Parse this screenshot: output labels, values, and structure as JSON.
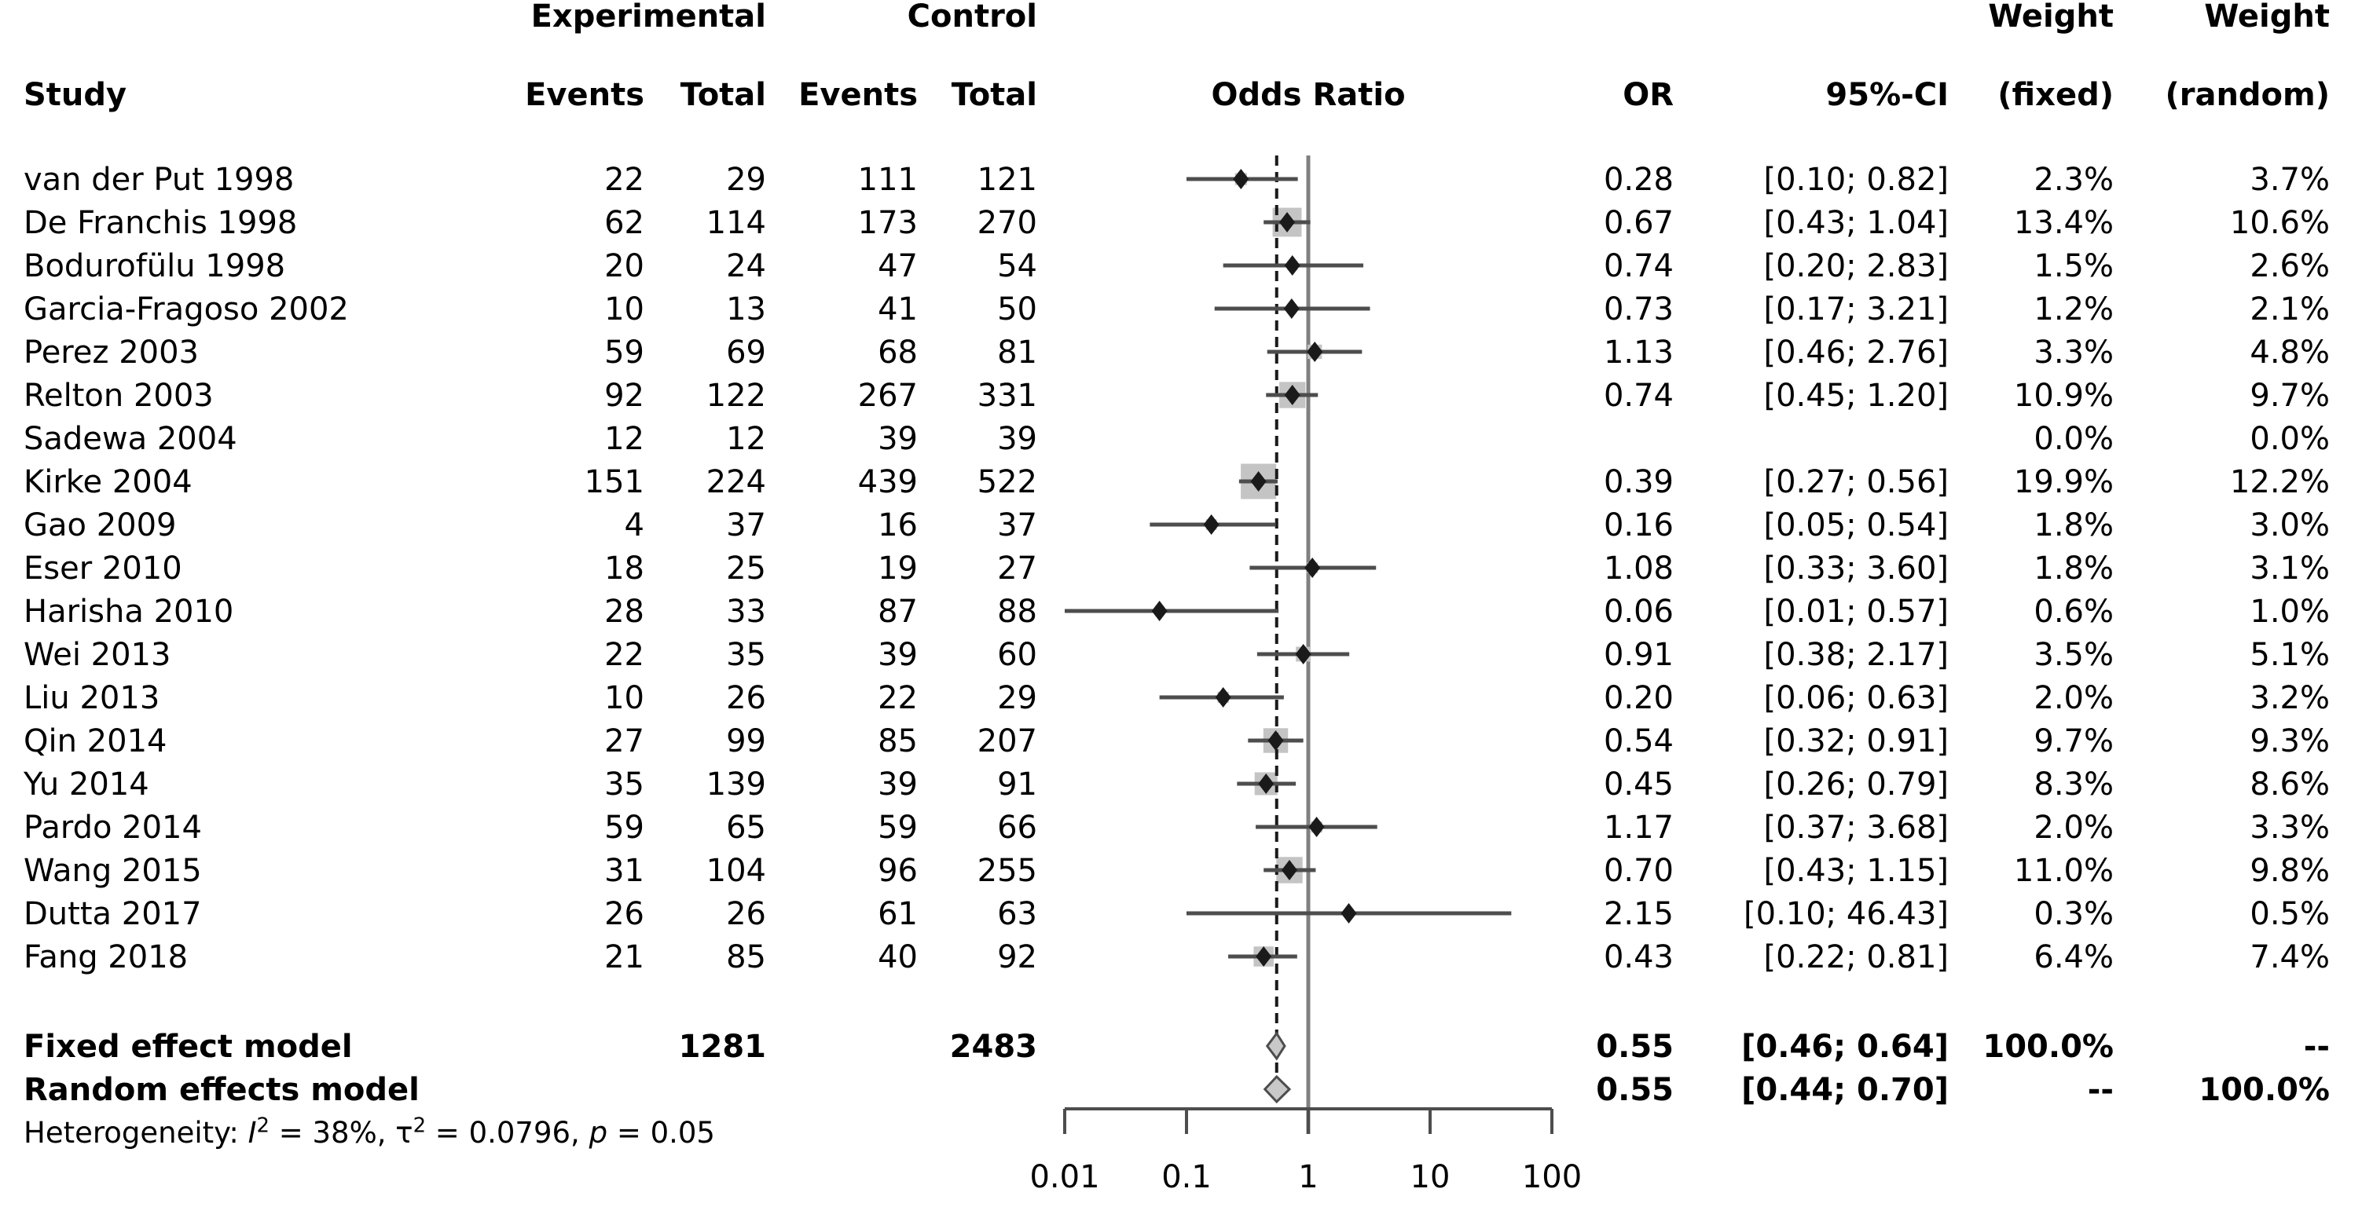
{
  "header": {
    "study": "Study",
    "experimental": "Experimental",
    "control": "Control",
    "events": "Events",
    "total": "Total",
    "odds_ratio": "Odds Ratio",
    "or": "OR",
    "ci": "95%-CI",
    "weight": "Weight",
    "fixed": "(fixed)",
    "random": "(random)"
  },
  "heterogeneity": {
    "prefix": "Heterogeneity: ",
    "i_sym": "I",
    "i_sup": "2",
    "i_rest": " = 38%, ",
    "tau_sym": "τ",
    "tau_sup": "2",
    "tau_rest": " = 0.0796, ",
    "p_sym": "p",
    "p_rest": " = 0.05"
  },
  "colors": {
    "background": "#ffffff",
    "text": "#000000",
    "ci_line": "#4d4d4d",
    "reference_line": "#808080",
    "pooled_dashed_line": "#1a1a1a",
    "square_fill": "#c4c4c4",
    "marker_fill": "#1a1a1a",
    "diamond_fill": "#c8c8c8",
    "diamond_stroke": "#4d4d4d",
    "axis": "#4d4d4d"
  },
  "chart_data": {
    "type": "scatter",
    "subtype": "forest-plot-meta-analysis",
    "effect_measure": "Odds Ratio",
    "x_scale": "log10",
    "x_range": [
      0.01,
      100
    ],
    "x_ticks": [
      0.01,
      0.1,
      1,
      10,
      100
    ],
    "x_tick_labels": [
      "0.01",
      "0.1",
      "1",
      "10",
      "100"
    ],
    "reference_line": 1,
    "pooled_effect_line": 0.55,
    "grid": false,
    "studies": [
      {
        "name": "van der Put 1998",
        "exp_events": "22",
        "exp_total": "29",
        "ctrl_events": "111",
        "ctrl_total": "121",
        "or": 0.28,
        "ci_low": 0.1,
        "ci_high": 0.82,
        "or_label": "0.28",
        "ci_label": "[0.10; 0.82]",
        "weight_fixed": "2.3%",
        "weight_random": "3.7%",
        "weight_fixed_num": 2.3
      },
      {
        "name": "De Franchis 1998",
        "exp_events": "62",
        "exp_total": "114",
        "ctrl_events": "173",
        "ctrl_total": "270",
        "or": 0.67,
        "ci_low": 0.43,
        "ci_high": 1.04,
        "or_label": "0.67",
        "ci_label": "[0.43; 1.04]",
        "weight_fixed": "13.4%",
        "weight_random": "10.6%",
        "weight_fixed_num": 13.4
      },
      {
        "name": "Bodurofülu 1998",
        "exp_events": "20",
        "exp_total": "24",
        "ctrl_events": "47",
        "ctrl_total": "54",
        "or": 0.74,
        "ci_low": 0.2,
        "ci_high": 2.83,
        "or_label": "0.74",
        "ci_label": "[0.20; 2.83]",
        "weight_fixed": "1.5%",
        "weight_random": "2.6%",
        "weight_fixed_num": 1.5
      },
      {
        "name": "Garcia-Fragoso 2002",
        "exp_events": "10",
        "exp_total": "13",
        "ctrl_events": "41",
        "ctrl_total": "50",
        "or": 0.73,
        "ci_low": 0.17,
        "ci_high": 3.21,
        "or_label": "0.73",
        "ci_label": "[0.17; 3.21]",
        "weight_fixed": "1.2%",
        "weight_random": "2.1%",
        "weight_fixed_num": 1.2
      },
      {
        "name": "Perez 2003",
        "exp_events": "59",
        "exp_total": "69",
        "ctrl_events": "68",
        "ctrl_total": "81",
        "or": 1.13,
        "ci_low": 0.46,
        "ci_high": 2.76,
        "or_label": "1.13",
        "ci_label": "[0.46; 2.76]",
        "weight_fixed": "3.3%",
        "weight_random": "4.8%",
        "weight_fixed_num": 3.3
      },
      {
        "name": "Relton 2003",
        "exp_events": "92",
        "exp_total": "122",
        "ctrl_events": "267",
        "ctrl_total": "331",
        "or": 0.74,
        "ci_low": 0.45,
        "ci_high": 1.2,
        "or_label": "0.74",
        "ci_label": "[0.45; 1.20]",
        "weight_fixed": "10.9%",
        "weight_random": "9.7%",
        "weight_fixed_num": 10.9
      },
      {
        "name": "Sadewa 2004",
        "exp_events": "12",
        "exp_total": "12",
        "ctrl_events": "39",
        "ctrl_total": "39",
        "or": null,
        "ci_low": null,
        "ci_high": null,
        "or_label": "",
        "ci_label": "",
        "weight_fixed": "0.0%",
        "weight_random": "0.0%",
        "weight_fixed_num": 0
      },
      {
        "name": "Kirke 2004",
        "exp_events": "151",
        "exp_total": "224",
        "ctrl_events": "439",
        "ctrl_total": "522",
        "or": 0.39,
        "ci_low": 0.27,
        "ci_high": 0.56,
        "or_label": "0.39",
        "ci_label": "[0.27; 0.56]",
        "weight_fixed": "19.9%",
        "weight_random": "12.2%",
        "weight_fixed_num": 19.9
      },
      {
        "name": "Gao 2009",
        "exp_events": "4",
        "exp_total": "37",
        "ctrl_events": "16",
        "ctrl_total": "37",
        "or": 0.16,
        "ci_low": 0.05,
        "ci_high": 0.54,
        "or_label": "0.16",
        "ci_label": "[0.05; 0.54]",
        "weight_fixed": "1.8%",
        "weight_random": "3.0%",
        "weight_fixed_num": 1.8
      },
      {
        "name": "Eser 2010",
        "exp_events": "18",
        "exp_total": "25",
        "ctrl_events": "19",
        "ctrl_total": "27",
        "or": 1.08,
        "ci_low": 0.33,
        "ci_high": 3.6,
        "or_label": "1.08",
        "ci_label": "[0.33; 3.60]",
        "weight_fixed": "1.8%",
        "weight_random": "3.1%",
        "weight_fixed_num": 1.8
      },
      {
        "name": "Harisha 2010",
        "exp_events": "28",
        "exp_total": "33",
        "ctrl_events": "87",
        "ctrl_total": "88",
        "or": 0.06,
        "ci_low": 0.01,
        "ci_high": 0.57,
        "or_label": "0.06",
        "ci_label": "[0.01; 0.57]",
        "weight_fixed": "0.6%",
        "weight_random": "1.0%",
        "weight_fixed_num": 0.6
      },
      {
        "name": "Wei 2013",
        "exp_events": "22",
        "exp_total": "35",
        "ctrl_events": "39",
        "ctrl_total": "60",
        "or": 0.91,
        "ci_low": 0.38,
        "ci_high": 2.17,
        "or_label": "0.91",
        "ci_label": "[0.38; 2.17]",
        "weight_fixed": "3.5%",
        "weight_random": "5.1%",
        "weight_fixed_num": 3.5
      },
      {
        "name": "Liu 2013",
        "exp_events": "10",
        "exp_total": "26",
        "ctrl_events": "22",
        "ctrl_total": "29",
        "or": 0.2,
        "ci_low": 0.06,
        "ci_high": 0.63,
        "or_label": "0.20",
        "ci_label": "[0.06; 0.63]",
        "weight_fixed": "2.0%",
        "weight_random": "3.2%",
        "weight_fixed_num": 2.0
      },
      {
        "name": "Qin 2014",
        "exp_events": "27",
        "exp_total": "99",
        "ctrl_events": "85",
        "ctrl_total": "207",
        "or": 0.54,
        "ci_low": 0.32,
        "ci_high": 0.91,
        "or_label": "0.54",
        "ci_label": "[0.32; 0.91]",
        "weight_fixed": "9.7%",
        "weight_random": "9.3%",
        "weight_fixed_num": 9.7
      },
      {
        "name": "Yu 2014",
        "exp_events": "35",
        "exp_total": "139",
        "ctrl_events": "39",
        "ctrl_total": "91",
        "or": 0.45,
        "ci_low": 0.26,
        "ci_high": 0.79,
        "or_label": "0.45",
        "ci_label": "[0.26; 0.79]",
        "weight_fixed": "8.3%",
        "weight_random": "8.6%",
        "weight_fixed_num": 8.3
      },
      {
        "name": "Pardo 2014",
        "exp_events": "59",
        "exp_total": "65",
        "ctrl_events": "59",
        "ctrl_total": "66",
        "or": 1.17,
        "ci_low": 0.37,
        "ci_high": 3.68,
        "or_label": "1.17",
        "ci_label": "[0.37; 3.68]",
        "weight_fixed": "2.0%",
        "weight_random": "3.3%",
        "weight_fixed_num": 2.0
      },
      {
        "name": "Wang 2015",
        "exp_events": "31",
        "exp_total": "104",
        "ctrl_events": "96",
        "ctrl_total": "255",
        "or": 0.7,
        "ci_low": 0.43,
        "ci_high": 1.15,
        "or_label": "0.70",
        "ci_label": "[0.43; 1.15]",
        "weight_fixed": "11.0%",
        "weight_random": "9.8%",
        "weight_fixed_num": 11.0
      },
      {
        "name": "Dutta 2017",
        "exp_events": "26",
        "exp_total": "26",
        "ctrl_events": "61",
        "ctrl_total": "63",
        "or": 2.15,
        "ci_low": 0.1,
        "ci_high": 46.43,
        "or_label": "2.15",
        "ci_label": "[0.10; 46.43]",
        "weight_fixed": "0.3%",
        "weight_random": "0.5%",
        "weight_fixed_num": 0.3
      },
      {
        "name": "Fang 2018",
        "exp_events": "21",
        "exp_total": "85",
        "ctrl_events": "40",
        "ctrl_total": "92",
        "or": 0.43,
        "ci_low": 0.22,
        "ci_high": 0.81,
        "or_label": "0.43",
        "ci_label": "[0.22; 0.81]",
        "weight_fixed": "6.4%",
        "weight_random": "7.4%",
        "weight_fixed_num": 6.4
      }
    ],
    "summaries": [
      {
        "name": "Fixed effect model",
        "exp_total": "1281",
        "ctrl_total": "2483",
        "or": 0.55,
        "ci_low": 0.46,
        "ci_high": 0.64,
        "or_label": "0.55",
        "ci_label": "[0.46; 0.64]",
        "weight_fixed": "100.0%",
        "weight_random": "--"
      },
      {
        "name": "Random effects model",
        "exp_total": "",
        "ctrl_total": "",
        "or": 0.55,
        "ci_low": 0.44,
        "ci_high": 0.7,
        "or_label": "0.55",
        "ci_label": "[0.44; 0.70]",
        "weight_fixed": "--",
        "weight_random": "100.0%"
      }
    ],
    "heterogeneity_text": "Heterogeneity: I² = 38%, τ² = 0.0796, p = 0.05"
  }
}
